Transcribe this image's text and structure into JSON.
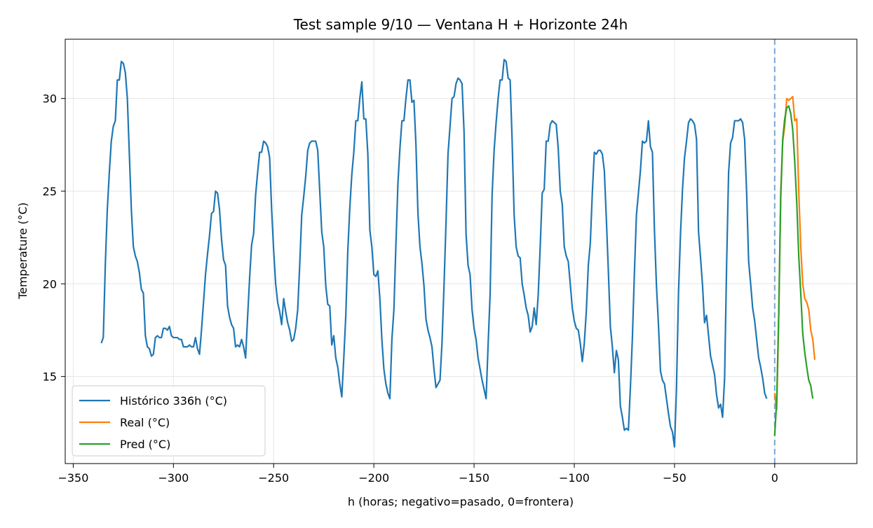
{
  "chart_data": {
    "type": "line",
    "title": "Test sample 9/10 — Ventana H + Horizonte 24h",
    "xlabel": "h (horas; negativo=pasado, 0=frontera)",
    "ylabel": "Temperature (°C)",
    "xlim": [
      -354,
      41
    ],
    "ylim": [
      10.3,
      33.2
    ],
    "xticks": [
      -350,
      -300,
      -250,
      -200,
      -150,
      -100,
      -50,
      0
    ],
    "xtick_labels": [
      "−350",
      "−300",
      "−250",
      "−200",
      "−150",
      "−100",
      "−50",
      "0"
    ],
    "yticks": [
      15,
      20,
      25,
      30
    ],
    "ytick_labels": [
      "15",
      "20",
      "25",
      "30"
    ],
    "grid": true,
    "legend_position": "lower-left",
    "boundary_line": {
      "x": 0,
      "style": "dashed",
      "color": "#7aa6d6"
    },
    "series": [
      {
        "name": "Histórico 336h (°C)",
        "color": "#1f77b4",
        "x_start": -336,
        "x_step": 1,
        "values": [
          16.8,
          17.1,
          21,
          24,
          26,
          27.7,
          28.5,
          28.8,
          31,
          31,
          32,
          31.9,
          31.4,
          30,
          27,
          24,
          22,
          21.5,
          21.2,
          20.6,
          19.7,
          19.5,
          17.2,
          16.6,
          16.5,
          16.1,
          16.2,
          17.1,
          17.2,
          17.1,
          17.1,
          17.6,
          17.6,
          17.5,
          17.7,
          17.2,
          17.1,
          17.1,
          17.1,
          17,
          17,
          16.6,
          16.6,
          16.6,
          16.7,
          16.6,
          16.6,
          17.1,
          16.5,
          16.2,
          17.5,
          19,
          20.5,
          21.6,
          22.6,
          23.8,
          23.9,
          25,
          24.9,
          24,
          22.4,
          21.3,
          21,
          18.8,
          18.2,
          17.8,
          17.6,
          16.6,
          16.7,
          16.6,
          17,
          16.6,
          16,
          18.2,
          20.3,
          22.1,
          22.7,
          24.8,
          26,
          27.1,
          27.1,
          27.7,
          27.6,
          27.4,
          26.8,
          24,
          21.8,
          20,
          19,
          18.5,
          17.8,
          19.2,
          18.5,
          17.9,
          17.5,
          16.9,
          17,
          17.6,
          18.6,
          21,
          23.7,
          24.7,
          25.8,
          27.2,
          27.6,
          27.7,
          27.7,
          27.7,
          27.2,
          25,
          22.8,
          22,
          19.9,
          18.9,
          18.8,
          16.7,
          17.2,
          16,
          15.5,
          14.6,
          13.9,
          16,
          18.3,
          21.8,
          24.1,
          25.9,
          27.1,
          28.8,
          28.8,
          30,
          30.9,
          28.9,
          28.9,
          27,
          22.9,
          22,
          20.5,
          20.4,
          20.7,
          19.2,
          17,
          15.4,
          14.6,
          14.1,
          13.8,
          17,
          18.6,
          22.1,
          25.4,
          27.3,
          28.8,
          28.8,
          30,
          31,
          31,
          29.8,
          29.9,
          27.5,
          23.8,
          22,
          21.1,
          19.9,
          18.1,
          17.5,
          17.1,
          16.6,
          15.4,
          14.4,
          14.6,
          14.8,
          16.8,
          19.9,
          23.3,
          27,
          28.5,
          30,
          30.1,
          30.8,
          31.1,
          31,
          30.8,
          28.2,
          22.7,
          21,
          20.5,
          18.6,
          17.6,
          17,
          16,
          15.4,
          14.8,
          14.3,
          13.8,
          16.7,
          19.4,
          24.8,
          27.2,
          28.7,
          30,
          31,
          31,
          32.1,
          32,
          31.1,
          31,
          27.7,
          23.7,
          22,
          21.5,
          21.4,
          20,
          19.4,
          18.7,
          18.3,
          17.4,
          17.7,
          18.7,
          17.8,
          19.4,
          22,
          24.9,
          25.1,
          27.7,
          27.7,
          28.6,
          28.8,
          28.7,
          28.6,
          27.3,
          25,
          24.3,
          22,
          21.5,
          21.2,
          20,
          18.7,
          18,
          17.6,
          17.5,
          16.8,
          15.8,
          16.8,
          18.5,
          21,
          22.2,
          24.9,
          27.1,
          27,
          27.2,
          27.2,
          27,
          26.1,
          23.5,
          20.7,
          17.7,
          16.6,
          15.2,
          16.4,
          15.9,
          13.4,
          12.8,
          12.1,
          12.2,
          12.1,
          14.4,
          17.1,
          20.6,
          23.7,
          24.9,
          26.1,
          27.7,
          27.6,
          27.7,
          28.8,
          27.4,
          27.1,
          22.9,
          19.9,
          17.8,
          15.3,
          14.8,
          14.6,
          13.8,
          13,
          12.3,
          12,
          11.2,
          14.4,
          19.5,
          22.7,
          25.1,
          26.8,
          27.7,
          28.7,
          28.9,
          28.8,
          28.6,
          27.8,
          22.8,
          21.4,
          19.9,
          17.9,
          18.3,
          17.2,
          16.1,
          15.6,
          15.1,
          14,
          13.3,
          13.5,
          12.8,
          14.9,
          21,
          26,
          27.6,
          27.9,
          28.8,
          28.8,
          28.8,
          28.9,
          28.7,
          27.8,
          24.9,
          21.2,
          20,
          18.7,
          18,
          17,
          16,
          15.5,
          14.9,
          14.1,
          13.8
        ]
      },
      {
        "name": "Real (°C)",
        "color": "#ff7f0e",
        "x_start": 0,
        "x_step": 1,
        "values": [
          14.1,
          13.2,
          18.1,
          24.9,
          27.7,
          28.5,
          30,
          29.9,
          30,
          30.1,
          28.8,
          28.9,
          25,
          22,
          20,
          19.2,
          19,
          18.6,
          17.5,
          17,
          15.9
        ]
      },
      {
        "name": "Pred (°C)",
        "color": "#2ca02c",
        "x_start": 0,
        "x_step": 1,
        "values": [
          11.8,
          13.7,
          18.3,
          24.6,
          27.8,
          28.9,
          29.5,
          29.6,
          29.2,
          28.3,
          26.6,
          24.4,
          21.5,
          19.5,
          17.3,
          16.3,
          15.5,
          14.8,
          14.5,
          13.8
        ]
      }
    ]
  }
}
